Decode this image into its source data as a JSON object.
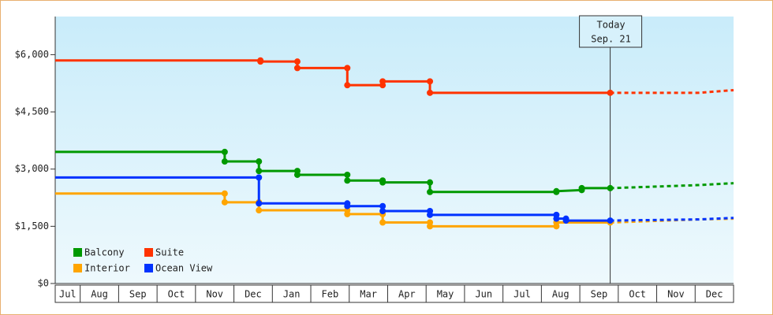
{
  "chart_data": {
    "type": "line",
    "categories": [
      "Jul",
      "Aug",
      "Sep",
      "Oct",
      "Nov",
      "Dec",
      "Jan",
      "Feb",
      "Mar",
      "Apr",
      "May",
      "Jun",
      "Jul",
      "Aug",
      "Sep",
      "Oct",
      "Nov",
      "Dec"
    ],
    "xlim": [
      0.35,
      18
    ],
    "ylim": [
      0,
      7000
    ],
    "yticks": [
      {
        "value": 0,
        "label": "$0"
      },
      {
        "value": 1500,
        "label": "$1,500"
      },
      {
        "value": 3000,
        "label": "$3,000"
      },
      {
        "value": 4500,
        "label": "$4,500"
      },
      {
        "value": 6000,
        "label": "$6,000"
      }
    ],
    "legend": "lower left",
    "annotation": {
      "x": 14.79,
      "lines": [
        "Today",
        "Sep. 21"
      ]
    },
    "series": [
      {
        "name": "Balcony",
        "color": "#009900",
        "x": [
          0.35,
          4.76,
          4.76,
          5.65,
          5.65,
          6.65,
          6.65,
          7.95,
          7.95,
          8.87,
          8.87,
          10.1,
          10.1,
          13.39,
          13.39,
          14.05,
          14.05,
          14.79
        ],
        "values": [
          3450,
          3450,
          3200,
          3200,
          2950,
          2950,
          2850,
          2850,
          2700,
          2700,
          2650,
          2650,
          2400,
          2400,
          2420,
          2450,
          2500,
          2500
        ],
        "forecast_x": [
          14.79,
          17.08,
          18
        ],
        "forecast_values": [
          2500,
          2580,
          2630
        ]
      },
      {
        "name": "Suite",
        "color": "#ff3300",
        "x": [
          0.35,
          5.69,
          5.69,
          6.65,
          6.65,
          7.95,
          7.95,
          8.87,
          8.87,
          10.1,
          10.1,
          14.79
        ],
        "values": [
          5850,
          5850,
          5820,
          5820,
          5650,
          5650,
          5200,
          5200,
          5300,
          5300,
          5000,
          5000
        ],
        "forecast_x": [
          14.79,
          17.08,
          18
        ],
        "forecast_values": [
          5000,
          5000,
          5070
        ]
      },
      {
        "name": "Interior",
        "color": "#ffa500",
        "x": [
          0.35,
          4.76,
          4.76,
          5.65,
          5.65,
          7.95,
          7.95,
          8.87,
          8.87,
          10.1,
          10.1,
          13.39,
          13.39,
          14.79
        ],
        "values": [
          2360,
          2360,
          2130,
          2130,
          1920,
          1920,
          1820,
          1820,
          1600,
          1600,
          1500,
          1500,
          1600,
          1600
        ],
        "forecast_x": [
          14.79,
          17.08,
          18
        ],
        "forecast_values": [
          1600,
          1680,
          1700
        ]
      },
      {
        "name": "Ocean View",
        "color": "#0033ff",
        "x": [
          0.35,
          5.65,
          5.65,
          7.95,
          7.95,
          8.87,
          8.87,
          10.1,
          10.1,
          13.39,
          13.39,
          13.64,
          13.64,
          14.79
        ],
        "values": [
          2780,
          2780,
          2100,
          2100,
          2030,
          2030,
          1900,
          1900,
          1800,
          1800,
          1700,
          1700,
          1650,
          1650
        ],
        "forecast_x": [
          14.79,
          17.08,
          18
        ],
        "forecast_values": [
          1650,
          1680,
          1720
        ]
      }
    ]
  }
}
